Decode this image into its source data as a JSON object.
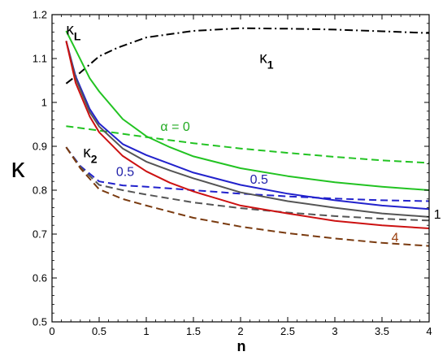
{
  "chart_data": {
    "type": "line",
    "title": "",
    "xlabel": "n",
    "ylabel": "κ",
    "xlim": [
      0,
      4
    ],
    "ylim": [
      0.5,
      1.2
    ],
    "xticks": [
      0,
      0.5,
      1,
      1.5,
      2,
      2.5,
      3,
      3.5,
      4
    ],
    "xtick_labels": [
      "0",
      "0.5",
      "1",
      "1.5",
      "2",
      "2.5",
      "3",
      "3.5",
      "4"
    ],
    "yticks": [
      0.5,
      0.6,
      0.7,
      0.8,
      0.9,
      1.0,
      1.1,
      1.2
    ],
    "ytick_labels": [
      "0.5",
      "0.6",
      "0.7",
      "0.8",
      "0.9",
      "1",
      "1.1",
      "1.2"
    ],
    "grid": false,
    "series": [
      {
        "color": "#000000",
        "dash": "dashdot",
        "x": [
          0.15,
          0.3,
          0.5,
          0.7,
          1.0,
          1.5,
          2.0,
          2.5,
          3.0,
          3.5,
          4.0
        ],
        "values": [
          1.043,
          1.068,
          1.105,
          1.125,
          1.148,
          1.163,
          1.169,
          1.168,
          1.166,
          1.162,
          1.158
        ]
      },
      {
        "color": "#22c322",
        "dash": "solid",
        "x": [
          0.15,
          0.25,
          0.4,
          0.5,
          0.75,
          1.0,
          1.25,
          1.5,
          2.0,
          2.5,
          3.0,
          3.5,
          4.0
        ],
        "values": [
          1.163,
          1.12,
          1.055,
          1.025,
          0.962,
          0.923,
          0.898,
          0.877,
          0.85,
          0.832,
          0.818,
          0.808,
          0.8
        ]
      },
      {
        "color": "#22c322",
        "dash": "dashed",
        "x": [
          0.15,
          0.5,
          1.0,
          1.5,
          2.0,
          2.5,
          3.0,
          3.5,
          4.0
        ],
        "values": [
          0.946,
          0.936,
          0.921,
          0.907,
          0.895,
          0.885,
          0.876,
          0.868,
          0.862
        ]
      },
      {
        "color": "#2222cc",
        "dash": "solid",
        "x": [
          0.15,
          0.25,
          0.4,
          0.5,
          0.75,
          1.0,
          1.25,
          1.5,
          2.0,
          2.5,
          3.0,
          3.5,
          4.0
        ],
        "values": [
          1.14,
          1.06,
          0.985,
          0.952,
          0.905,
          0.88,
          0.86,
          0.84,
          0.812,
          0.792,
          0.777,
          0.765,
          0.757
        ]
      },
      {
        "color": "#2222cc",
        "dash": "dashed",
        "x": [
          0.15,
          0.3,
          0.5,
          0.75,
          1.0,
          1.5,
          2.0,
          2.5,
          3.0,
          3.5,
          4.0
        ],
        "values": [
          0.898,
          0.855,
          0.82,
          0.811,
          0.808,
          0.8,
          0.792,
          0.786,
          0.781,
          0.777,
          0.775
        ]
      },
      {
        "color": "#555555",
        "dash": "solid",
        "x": [
          0.15,
          0.25,
          0.4,
          0.5,
          0.75,
          1.0,
          1.25,
          1.5,
          2.0,
          2.5,
          3.0,
          3.5,
          4.0
        ],
        "values": [
          1.14,
          1.055,
          0.978,
          0.945,
          0.895,
          0.865,
          0.845,
          0.827,
          0.795,
          0.775,
          0.76,
          0.747,
          0.739
        ]
      },
      {
        "color": "#555555",
        "dash": "dashed",
        "x": [
          0.15,
          0.3,
          0.5,
          0.75,
          1.0,
          1.5,
          2.0,
          2.5,
          3.0,
          3.5,
          4.0
        ],
        "values": [
          0.898,
          0.853,
          0.812,
          0.8,
          0.79,
          0.772,
          0.759,
          0.749,
          0.741,
          0.735,
          0.731
        ]
      },
      {
        "color": "#cc1111",
        "dash": "solid",
        "x": [
          0.15,
          0.25,
          0.4,
          0.5,
          0.75,
          1.0,
          1.25,
          1.5,
          2.0,
          2.5,
          3.0,
          3.5,
          4.0
        ],
        "values": [
          1.14,
          1.045,
          0.968,
          0.932,
          0.878,
          0.843,
          0.817,
          0.797,
          0.765,
          0.747,
          0.73,
          0.72,
          0.713
        ]
      },
      {
        "color": "#7a3b10",
        "dash": "dashed",
        "x": [
          0.15,
          0.3,
          0.5,
          0.75,
          1.0,
          1.5,
          2.0,
          2.5,
          3.0,
          3.5,
          4.0
        ],
        "values": [
          0.898,
          0.85,
          0.802,
          0.78,
          0.765,
          0.737,
          0.717,
          0.702,
          0.69,
          0.68,
          0.673
        ]
      }
    ],
    "annotations": [
      {
        "text": "κ",
        "sub": "L",
        "x": 0.15,
        "y": 1.155,
        "color": "#000000"
      },
      {
        "text": "κ",
        "sub": "1",
        "x": 2.2,
        "y": 1.09,
        "color": "#000000"
      },
      {
        "text": "κ",
        "sub": "2",
        "x": 0.33,
        "y": 0.875,
        "color": "#000000"
      },
      {
        "text": "α = 0",
        "x": 1.15,
        "y": 0.935,
        "color": "#22aa22"
      },
      {
        "text": "0.5",
        "x": 0.68,
        "y": 0.832,
        "color": "#2222aa"
      },
      {
        "text": "0.5",
        "x": 2.1,
        "y": 0.815,
        "color": "#2222aa"
      },
      {
        "text": "1",
        "x": 4.05,
        "y": 0.735,
        "color": "#000000"
      },
      {
        "text": "4",
        "x": 3.6,
        "y": 0.682,
        "color": "#9a4010"
      }
    ]
  }
}
